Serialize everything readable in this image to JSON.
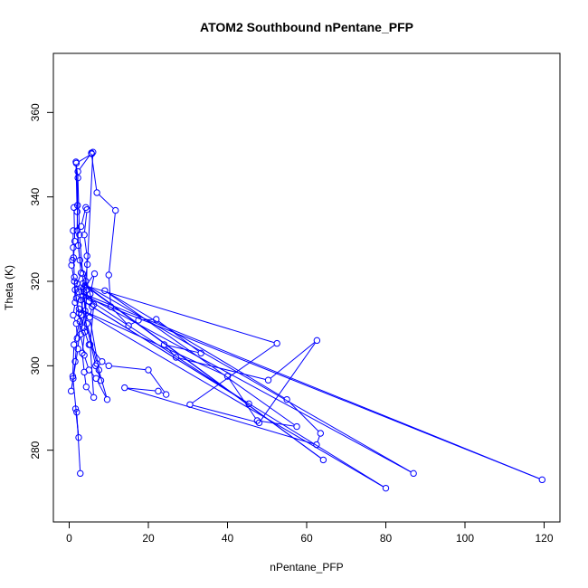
{
  "chart_data": {
    "type": "scatter",
    "title": "ATOM2 Southbound nPentane_PFP",
    "xlabel": "nPentane_PFP",
    "ylabel": "Theta (K)",
    "xlim": [
      -4,
      124
    ],
    "ylim": [
      263,
      374
    ],
    "xticks": [
      0,
      20,
      40,
      60,
      80,
      100,
      120
    ],
    "yticks": [
      280,
      300,
      320,
      340,
      360
    ],
    "grid": false,
    "legend": "none",
    "series_color": "#0000ff",
    "marker": "open-circle",
    "connected": true,
    "series": [
      {
        "points": [
          [
            2.8,
            274.5
          ],
          [
            1.9,
            289.0
          ],
          [
            1.6,
            289.8
          ],
          [
            2.4,
            283.0
          ],
          [
            0.9,
            297.5
          ],
          [
            1.2,
            305.0
          ],
          [
            2.7,
            310.5
          ],
          [
            1.5,
            318.0
          ],
          [
            3.0,
            322.0
          ],
          [
            2.3,
            328.5
          ],
          [
            2.0,
            336.5
          ],
          [
            1.7,
            348.3
          ],
          [
            2.2,
            344.5
          ],
          [
            2.6,
            331.0
          ],
          [
            3.4,
            321.8
          ],
          [
            4.0,
            313.0
          ],
          [
            2.9,
            307.5
          ],
          [
            3.8,
            302.5
          ],
          [
            5.0,
            299.0
          ],
          [
            6.8,
            297.0
          ],
          [
            9.6,
            292.0
          ],
          [
            7.0,
            300.5
          ],
          [
            4.5,
            310.0
          ],
          [
            3.7,
            317.5
          ],
          [
            4.6,
            324.0
          ],
          [
            6.0,
            350.6
          ],
          [
            5.7,
            350.2
          ],
          [
            1.8,
            348.0
          ],
          [
            2.1,
            338.0
          ],
          [
            1.2,
            337.5
          ],
          [
            1.4,
            329.5
          ],
          [
            1.1,
            325.6
          ],
          [
            0.8,
            325.0
          ],
          [
            0.6,
            323.8
          ],
          [
            1.3,
            320.0
          ],
          [
            1.8,
            316.0
          ],
          [
            2.5,
            312.5
          ],
          [
            3.6,
            309.0
          ],
          [
            5.0,
            305.0
          ],
          [
            8.3,
            301.0
          ],
          [
            10.0,
            300.0
          ],
          [
            20.0,
            299.0
          ],
          [
            24.5,
            293.2
          ],
          [
            22.5,
            294.0
          ],
          [
            14.0,
            294.8
          ],
          [
            62.5,
            281.3
          ],
          [
            63.5,
            284.0
          ],
          [
            55.0,
            292.0
          ],
          [
            9.0,
            317.8
          ],
          [
            57.5,
            285.6
          ],
          [
            47.5,
            287.0
          ],
          [
            40.0,
            297.5
          ],
          [
            2.5,
            313.5
          ],
          [
            80.0,
            271.0
          ],
          [
            3.0,
            315.6
          ],
          [
            45.4,
            291.0
          ],
          [
            3.5,
            316.5
          ],
          [
            119.5,
            273.0
          ],
          [
            2.4,
            317.5
          ],
          [
            87.0,
            274.5
          ],
          [
            3.5,
            319.5
          ],
          [
            64.2,
            277.7
          ],
          [
            4.0,
            319.0
          ],
          [
            52.5,
            305.3
          ],
          [
            30.5,
            290.8
          ],
          [
            48.0,
            286.5
          ],
          [
            62.6,
            306.0
          ],
          [
            50.3,
            296.6
          ],
          [
            27.0,
            302.0
          ],
          [
            24.0,
            305.0
          ],
          [
            33.3,
            303.0
          ],
          [
            22.0,
            311.0
          ],
          [
            17.5,
            310.8
          ],
          [
            15.0,
            309.5
          ],
          [
            10.5,
            314.0
          ],
          [
            10.0,
            321.5
          ],
          [
            11.7,
            336.8
          ],
          [
            7.0,
            341.0
          ],
          [
            5.6,
            350.4
          ],
          [
            2.2,
            346.0
          ],
          [
            2.0,
            332.0
          ],
          [
            2.7,
            325.0
          ],
          [
            4.2,
            320.0
          ],
          [
            6.2,
            314.5
          ],
          [
            5.3,
            305.0
          ],
          [
            6.2,
            292.5
          ],
          [
            4.3,
            295.0
          ],
          [
            3.8,
            298.5
          ],
          [
            3.3,
            303.0
          ],
          [
            3.9,
            308.0
          ],
          [
            4.4,
            318.0
          ],
          [
            4.5,
            326.0
          ],
          [
            3.8,
            331.0
          ],
          [
            4.5,
            337.0
          ],
          [
            4.2,
            337.5
          ],
          [
            3.0,
            333.0
          ],
          [
            1.0,
            332.0
          ],
          [
            1.0,
            328.0
          ],
          [
            1.3,
            321.0
          ],
          [
            1.5,
            315.0
          ],
          [
            1.0,
            312.0
          ],
          [
            1.8,
            310.0
          ],
          [
            2.0,
            306.5
          ],
          [
            1.5,
            301.0
          ],
          [
            1.0,
            297.0
          ],
          [
            0.5,
            294.0
          ],
          [
            2.2,
            304.0
          ],
          [
            3.0,
            312.0
          ],
          [
            3.8,
            318.5
          ],
          [
            6.4,
            321.8
          ],
          [
            5.3,
            317.0
          ],
          [
            5.8,
            314.0
          ],
          [
            5.2,
            311.5
          ],
          [
            7.5,
            299.0
          ],
          [
            8.0,
            296.5
          ],
          [
            6.7,
            300.0
          ],
          [
            2.0,
            319.5
          ],
          [
            5.0,
            315.3
          ]
        ]
      }
    ]
  }
}
